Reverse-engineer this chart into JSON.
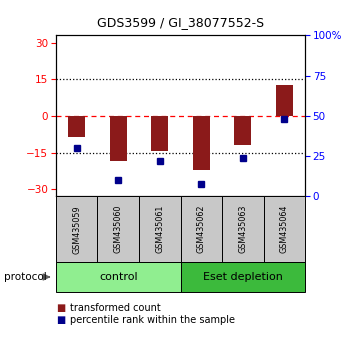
{
  "title": "GDS3599 / GI_38077552-S",
  "samples": [
    "GSM435059",
    "GSM435060",
    "GSM435061",
    "GSM435062",
    "GSM435063",
    "GSM435064"
  ],
  "red_values": [
    -8.5,
    -18.5,
    -14.5,
    -22.0,
    -12.0,
    12.5
  ],
  "blue_values_pct": [
    30,
    10,
    22,
    8,
    24,
    48
  ],
  "ylim_left": [
    -33,
    33
  ],
  "ylim_right": [
    0,
    100
  ],
  "yticks_left": [
    -30,
    -15,
    0,
    15,
    30
  ],
  "yticks_right": [
    0,
    25,
    50,
    75,
    100
  ],
  "ytick_labels_right": [
    "0",
    "25",
    "50",
    "75",
    "100%"
  ],
  "control_color": "#90ee90",
  "eset_color": "#3cba3c",
  "bar_color": "#8b1a1a",
  "dot_color": "#00008b",
  "label_bg_color": "#c8c8c8",
  "legend_red_label": "transformed count",
  "legend_blue_label": "percentile rank within the sample",
  "protocol_label": "protocol"
}
